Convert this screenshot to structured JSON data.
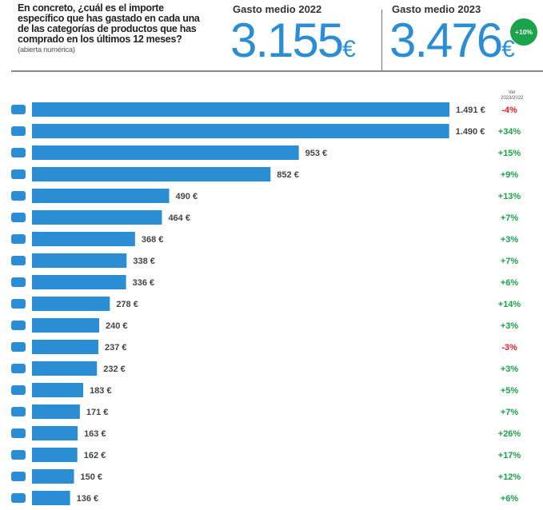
{
  "header": {
    "question": "En concreto, ¿cuál es el importe específico que has gastado en cada una de las categorías de productos que has comprado en los últimos 12 meses?",
    "note": "(abierta numérica)",
    "label_2022": "Gasto medio 2022",
    "value_2022": "3.155",
    "label_2023": "Gasto medio 2023",
    "value_2023": "3.476",
    "currency": "€",
    "change_badge": "+10%"
  },
  "colors": {
    "bar": "#2b8ed4",
    "positive": "#1aa34a",
    "negative": "#e8202a"
  },
  "chart_data": {
    "type": "bar",
    "orientation": "horizontal",
    "var_header": [
      "Var",
      "2023/2022"
    ],
    "categories": [
      "car-icon",
      "lightbulb-icon",
      "shopping-basket-icon",
      "airplane-icon",
      "graduation-cap-icon",
      "motorcycle-icon",
      "washing-machine-icon",
      "sofa-icon",
      "smartphone-icon",
      "dress-icon",
      "bed-icon",
      "pills-icon",
      "gamepad-icon",
      "bicycle-icon",
      "clapperboard-icon",
      "heart-icon",
      "runner-icon",
      "high-heel-icon",
      "rocking-horse-icon"
    ],
    "values": [
      1491,
      1490,
      953,
      852,
      490,
      464,
      368,
      338,
      336,
      278,
      240,
      237,
      232,
      183,
      171,
      163,
      162,
      150,
      136
    ],
    "value_labels": [
      "1.491 €",
      "1.490 €",
      "953 €",
      "852 €",
      "490 €",
      "464 €",
      "368 €",
      "338 €",
      "336 €",
      "278 €",
      "240 €",
      "237 €",
      "232 €",
      "183 €",
      "171 €",
      "163 €",
      "162 €",
      "150 €",
      "136 €"
    ],
    "var_labels": [
      "-4%",
      "+34%",
      "+15%",
      "+9%",
      "+13%",
      "+7%",
      "+3%",
      "+7%",
      "+6%",
      "+14%",
      "+3%",
      "-3%",
      "+3%",
      "+5%",
      "+7%",
      "+26%",
      "+17%",
      "+12%",
      "+6%"
    ],
    "xlim": [
      0,
      1491
    ]
  }
}
